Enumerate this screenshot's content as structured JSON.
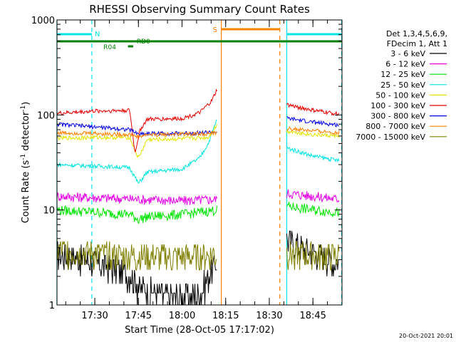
{
  "chart_data": {
    "type": "line",
    "title": "RHESSI Observing Summary Count Rates",
    "xlabel": "Start Time (28-Oct-05 17:17:02)",
    "ylabel_main": "Count Rate (s",
    "ylabel_sup1": "-1",
    "ylabel_mid": " detector",
    "ylabel_sup2": "-1",
    "ylabel_end": ")",
    "yscale": "log",
    "ylim": [
      1,
      1000
    ],
    "xlim": [
      "17:17",
      "18:55"
    ],
    "xticks": [
      {
        "t": "17:30",
        "label": "17:30"
      },
      {
        "t": "17:45",
        "label": "17:45"
      },
      {
        "t": "18:00",
        "label": "18:00"
      },
      {
        "t": "18:15",
        "label": "18:15"
      },
      {
        "t": "18:30",
        "label": "18:30"
      },
      {
        "t": "18:45",
        "label": "18:45"
      }
    ],
    "yticks": [
      {
        "v": 1,
        "label": "1"
      },
      {
        "v": 10,
        "label": "10"
      },
      {
        "v": 100,
        "label": "100"
      },
      {
        "v": 1000,
        "label": "1000"
      }
    ],
    "legend_header": [
      "Det 1,3,4,5,6,9,",
      "FDecim 1, Att 1"
    ],
    "legend_position": "right",
    "series": [
      {
        "name": "3 - 6 keV",
        "color": "#000000",
        "values1": [
          [
            17.283,
            3.5
          ],
          [
            17.4,
            3.2
          ],
          [
            17.55,
            2.6
          ],
          [
            17.7,
            2.2
          ],
          [
            17.75,
            1.6
          ],
          [
            17.85,
            1.3
          ],
          [
            18.0,
            1.2
          ],
          [
            18.1,
            1.3
          ],
          [
            18.2,
            3.0
          ]
        ],
        "values2": [
          [
            18.6,
            5.0
          ],
          [
            18.7,
            4.0
          ],
          [
            18.8,
            3.4
          ],
          [
            18.9,
            2.8
          ]
        ]
      },
      {
        "name": "6 - 12 keV",
        "color": "#e400e4",
        "values1": [
          [
            17.283,
            14
          ],
          [
            17.5,
            13.5
          ],
          [
            17.75,
            13
          ],
          [
            18.0,
            12.5
          ],
          [
            18.2,
            13
          ]
        ],
        "values2": [
          [
            18.6,
            15
          ],
          [
            18.75,
            14
          ],
          [
            18.9,
            13
          ]
        ]
      },
      {
        "name": "12 - 25 keV",
        "color": "#00e400",
        "values1": [
          [
            17.283,
            10
          ],
          [
            17.5,
            9.5
          ],
          [
            17.7,
            9
          ],
          [
            17.75,
            8
          ],
          [
            17.8,
            8.5
          ],
          [
            18.0,
            9
          ],
          [
            18.2,
            10
          ]
        ],
        "values2": [
          [
            18.6,
            11
          ],
          [
            18.75,
            10
          ],
          [
            18.9,
            9.5
          ]
        ]
      },
      {
        "name": "25 - 50 keV",
        "color": "#00e4e4",
        "values1": [
          [
            17.283,
            30
          ],
          [
            17.5,
            29
          ],
          [
            17.7,
            28
          ],
          [
            17.75,
            19
          ],
          [
            17.8,
            25
          ],
          [
            18.0,
            27
          ],
          [
            18.1,
            35
          ],
          [
            18.15,
            50
          ],
          [
            18.2,
            90
          ]
        ],
        "values2": [
          [
            18.6,
            45
          ],
          [
            18.75,
            37
          ],
          [
            18.9,
            33
          ]
        ]
      },
      {
        "name": "50 - 100 keV",
        "color": "#e4e400",
        "values1": [
          [
            17.283,
            57
          ],
          [
            17.5,
            58
          ],
          [
            17.7,
            58
          ],
          [
            17.75,
            35
          ],
          [
            17.8,
            55
          ],
          [
            18.0,
            56
          ],
          [
            18.15,
            58
          ],
          [
            18.2,
            78
          ]
        ],
        "values2": [
          [
            18.6,
            68
          ],
          [
            18.75,
            62
          ],
          [
            18.9,
            60
          ]
        ]
      },
      {
        "name": "100 - 300 keV",
        "color": "#e40000",
        "values1": [
          [
            17.283,
            104
          ],
          [
            17.5,
            110
          ],
          [
            17.7,
            112
          ],
          [
            17.73,
            40
          ],
          [
            17.76,
            70
          ],
          [
            17.8,
            90
          ],
          [
            18.0,
            92
          ],
          [
            18.1,
            105
          ],
          [
            18.17,
            140
          ],
          [
            18.2,
            185
          ]
        ],
        "values2": [
          [
            18.6,
            128
          ],
          [
            18.75,
            112
          ],
          [
            18.9,
            102
          ]
        ]
      },
      {
        "name": "300 - 800 keV",
        "color": "#0000e4",
        "values1": [
          [
            17.283,
            80
          ],
          [
            17.5,
            75
          ],
          [
            17.7,
            70
          ],
          [
            17.75,
            63
          ],
          [
            17.8,
            64
          ],
          [
            18.0,
            64
          ],
          [
            18.2,
            66
          ]
        ],
        "values2": [
          [
            18.6,
            92
          ],
          [
            18.75,
            84
          ],
          [
            18.9,
            78
          ]
        ]
      },
      {
        "name": "800 - 7000 keV",
        "color": "#ff8000",
        "values1": [
          [
            17.283,
            65
          ],
          [
            17.5,
            64
          ],
          [
            17.7,
            62
          ],
          [
            17.75,
            59
          ],
          [
            17.8,
            62
          ],
          [
            18.0,
            63
          ],
          [
            18.2,
            64
          ]
        ],
        "values2": [
          [
            18.6,
            72
          ],
          [
            18.75,
            68
          ],
          [
            18.9,
            65
          ]
        ]
      },
      {
        "name": "7000 - 15000 keV",
        "color": "#808000",
        "values1": [
          [
            17.283,
            3.8
          ],
          [
            17.5,
            3.5
          ],
          [
            17.75,
            3.3
          ],
          [
            18.0,
            3.2
          ],
          [
            18.2,
            3.4
          ]
        ],
        "values2": [
          [
            18.6,
            3.6
          ],
          [
            18.75,
            3.4
          ],
          [
            18.9,
            3.3
          ]
        ]
      }
    ],
    "annotations": {
      "night_label": "N",
      "saa_label": "S",
      "rd_labels": [
        "R04",
        "RD0"
      ]
    }
  },
  "footer": {
    "timestamp": "20-Oct-2021 20:01"
  }
}
